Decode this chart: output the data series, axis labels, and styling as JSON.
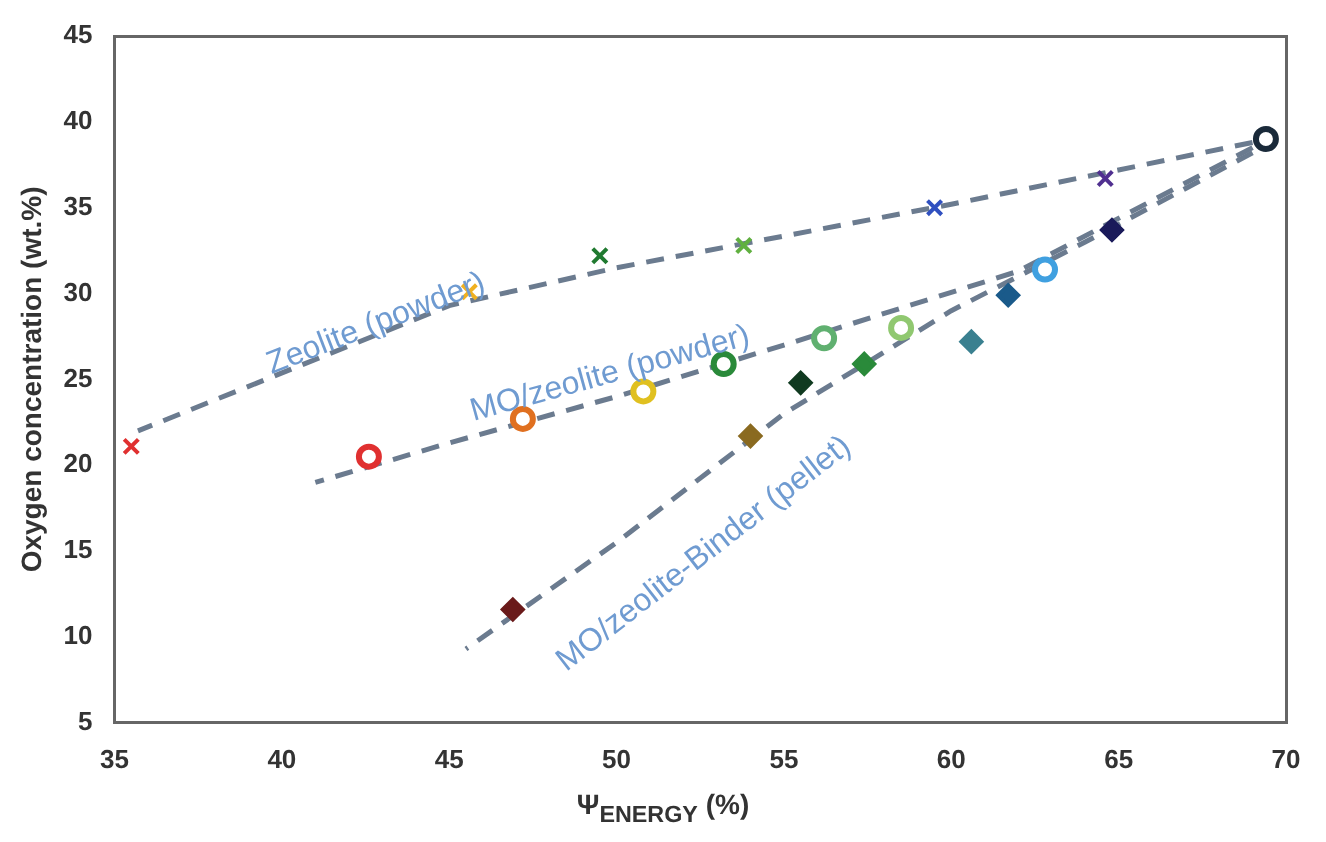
{
  "chart_data": {
    "type": "scatter",
    "xlabel": "Ψ$_{ENERGY}$ (%)",
    "ylabel": "Oxygen concentration (wt.%)",
    "xlim": [
      35,
      70
    ],
    "xticks": [
      35,
      40,
      45,
      50,
      55,
      60,
      65,
      70
    ],
    "ylim": [
      5,
      45
    ],
    "yticks": [
      5,
      10,
      15,
      20,
      25,
      30,
      35,
      40,
      45
    ],
    "grid": false,
    "legend": false,
    "series": [
      {
        "type": "scatter",
        "marker": "cross",
        "x": [
          35.5,
          45.6,
          49.5,
          53.8,
          59.5,
          64.6
        ],
        "values": [
          21.1,
          30.1,
          32.2,
          32.8,
          35.0,
          36.7
        ],
        "colors": [
          "#e03030",
          "#f0b020",
          "#207a30",
          "#60b040",
          "#3050c0",
          "#503090"
        ]
      },
      {
        "type": "scatter",
        "marker": "circle",
        "x": [
          42.6,
          47.2,
          50.8,
          53.2,
          56.2,
          58.5,
          62.8
        ],
        "values": [
          20.5,
          22.7,
          24.3,
          25.9,
          27.4,
          28.0,
          31.4
        ],
        "colors": [
          "#e03030",
          "#e07020",
          "#e0c020",
          "#2a8a3a",
          "#60b070",
          "#90c870",
          "#40a0e0"
        ]
      },
      {
        "type": "scatter",
        "marker": "diamond",
        "x": [
          46.9,
          54.0,
          55.5,
          57.4,
          60.6,
          61.7,
          64.8
        ],
        "values": [
          11.6,
          21.7,
          24.8,
          25.9,
          27.2,
          29.9,
          33.7
        ],
        "colors": [
          "#6a1a1a",
          "#8a6a20",
          "#103a20",
          "#2a8a3a",
          "#3a8090",
          "#1a5a8a",
          "#1a1a5a"
        ]
      },
      {
        "type": "scatter",
        "marker": "circle",
        "x": [
          69.4
        ],
        "values": [
          39.0
        ],
        "colors": [
          "#1a2a3a"
        ]
      },
      {
        "type": "line",
        "line_style": "dashed",
        "marker": "none",
        "color": "#6b7b8f",
        "x": [
          69,
          60,
          50,
          45,
          35.7
        ],
        "values": [
          38.8,
          35.2,
          31.5,
          29.3,
          22
        ]
      },
      {
        "type": "line",
        "line_style": "dashed",
        "marker": "none",
        "color": "#6b7b8f",
        "x": [
          69,
          62,
          55,
          50,
          45,
          41
        ],
        "values": [
          38.5,
          31.3,
          27,
          24,
          21.3,
          19
        ]
      },
      {
        "type": "line",
        "line_style": "dashed",
        "marker": "none",
        "color": "#6b7b8f",
        "x": [
          69,
          64,
          60,
          55,
          50,
          45.5
        ],
        "values": [
          38.2,
          33,
          29,
          23,
          15.5,
          9.3
        ]
      }
    ],
    "annotations": [
      "Zeolite (powder)",
      "MO/zeolite (powder)",
      "MO/zeolite-Binder (pellet)"
    ]
  }
}
